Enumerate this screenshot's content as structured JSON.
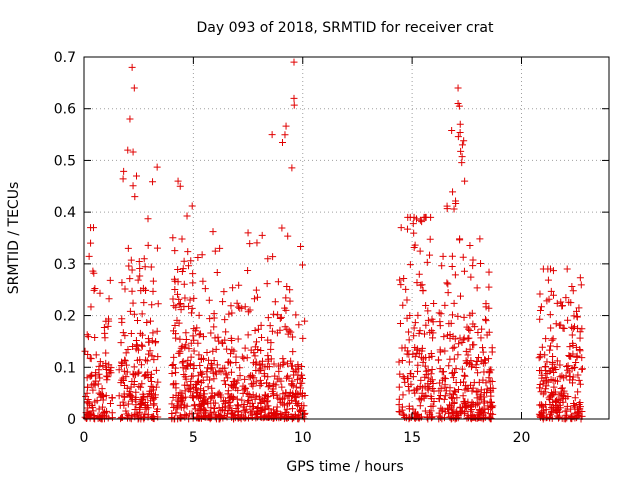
{
  "chart_data": {
    "type": "scatter",
    "title": "Day 093 of 2018, SRMTID for receiver crat",
    "xlabel": "GPS time / hours",
    "ylabel": "SRMTID / TECUs",
    "xlim": [
      0,
      24
    ],
    "ylim": [
      0,
      0.7
    ],
    "xticks": [
      "0",
      "5",
      "10",
      "15",
      "20"
    ],
    "yticks": [
      "0",
      "0.1",
      "0.2",
      "0.3",
      "0.4",
      "0.5",
      "0.6",
      "0.7"
    ],
    "grid": true,
    "marker": "plus",
    "color": "#e00000",
    "clusters": [
      {
        "start": 0.0,
        "end": 1.3,
        "count": 110,
        "typical": 0.07,
        "peak": 0.37,
        "peak_at": 0.35
      },
      {
        "start": 1.6,
        "end": 3.4,
        "count": 190,
        "typical": 0.12,
        "peak": 0.68,
        "peak_at": 2.3
      },
      {
        "start": 4.0,
        "end": 5.0,
        "count": 120,
        "typical": 0.12,
        "peak": 0.46,
        "peak_at": 4.3
      },
      {
        "start": 5.0,
        "end": 10.1,
        "count": 520,
        "typical": 0.09,
        "peak": 0.69,
        "peak_at": 9.6
      },
      {
        "start": 14.4,
        "end": 16.0,
        "count": 160,
        "typical": 0.13,
        "peak": 0.39,
        "peak_at": 14.8
      },
      {
        "start": 16.2,
        "end": 18.7,
        "count": 280,
        "typical": 0.11,
        "peak": 0.64,
        "peak_at": 17.1
      },
      {
        "start": 20.8,
        "end": 22.8,
        "count": 220,
        "typical": 0.1,
        "peak": 0.29,
        "peak_at": 21.0
      }
    ],
    "highlight_points": [
      {
        "x": 2.2,
        "y": 0.68
      },
      {
        "x": 2.3,
        "y": 0.64
      },
      {
        "x": 2.1,
        "y": 0.58
      },
      {
        "x": 2.0,
        "y": 0.52
      },
      {
        "x": 2.4,
        "y": 0.47
      },
      {
        "x": 9.6,
        "y": 0.69
      },
      {
        "x": 9.6,
        "y": 0.62
      },
      {
        "x": 8.6,
        "y": 0.55
      },
      {
        "x": 17.1,
        "y": 0.64
      },
      {
        "x": 17.1,
        "y": 0.61
      },
      {
        "x": 17.2,
        "y": 0.57
      },
      {
        "x": 17.3,
        "y": 0.53
      },
      {
        "x": 17.4,
        "y": 0.46
      },
      {
        "x": 4.3,
        "y": 0.46
      },
      {
        "x": 4.4,
        "y": 0.45
      },
      {
        "x": 14.8,
        "y": 0.39
      },
      {
        "x": 14.5,
        "y": 0.37
      },
      {
        "x": 0.3,
        "y": 0.37
      },
      {
        "x": 0.3,
        "y": 0.34
      },
      {
        "x": 21.0,
        "y": 0.29
      },
      {
        "x": 6.2,
        "y": 0.33
      },
      {
        "x": 7.5,
        "y": 0.36
      }
    ]
  }
}
